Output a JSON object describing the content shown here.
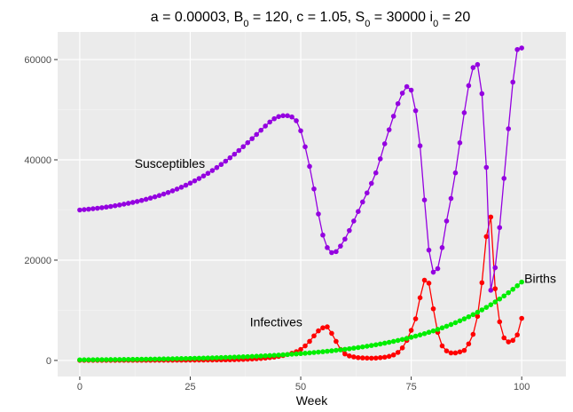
{
  "chart_data": {
    "type": "line",
    "title": {
      "a_text": "a = 0.00003, B",
      "b_sub": "0",
      "b_text": " = 120, c = 1.05, S",
      "s_sub": "0",
      "s_text": " = 30000 i",
      "i_sub": "0",
      "i_text": " = 20"
    },
    "xlabel": "Week",
    "ylabel": "",
    "xlim": [
      -5,
      110
    ],
    "ylim": [
      -3200,
      65500
    ],
    "x_ticks": [
      0,
      25,
      50,
      75,
      100
    ],
    "x_tick_labels": [
      "0",
      "25",
      "50",
      "75",
      "100"
    ],
    "y_ticks": [
      0,
      20000,
      40000,
      60000
    ],
    "y_tick_labels": [
      "0",
      "20000",
      "40000",
      "60000"
    ],
    "grid": true,
    "legend": "none",
    "x": [
      0,
      1,
      2,
      3,
      4,
      5,
      6,
      7,
      8,
      9,
      10,
      11,
      12,
      13,
      14,
      15,
      16,
      17,
      18,
      19,
      20,
      21,
      22,
      23,
      24,
      25,
      26,
      27,
      28,
      29,
      30,
      31,
      32,
      33,
      34,
      35,
      36,
      37,
      38,
      39,
      40,
      41,
      42,
      43,
      44,
      45,
      46,
      47,
      48,
      49,
      50,
      51,
      52,
      53,
      54,
      55,
      56,
      57,
      58,
      59,
      60,
      61,
      62,
      63,
      64,
      65,
      66,
      67,
      68,
      69,
      70,
      71,
      72,
      73,
      74,
      75,
      76,
      77,
      78,
      79,
      80,
      81,
      82,
      83,
      84,
      85,
      86,
      87,
      88,
      89,
      90,
      91,
      92,
      93,
      94,
      95,
      96,
      97,
      98,
      99,
      100
    ],
    "series": [
      {
        "name": "Susceptibles",
        "color": "#9400e0",
        "values": [
          30000,
          30075,
          30158,
          30250,
          30350,
          30460,
          30580,
          30710,
          30850,
          31000,
          31160,
          31330,
          31510,
          31700,
          31910,
          32130,
          32370,
          32620,
          32890,
          33180,
          33490,
          33820,
          34170,
          34540,
          34940,
          35360,
          35810,
          36280,
          36780,
          37310,
          37870,
          38460,
          39080,
          39730,
          40410,
          41120,
          41860,
          42630,
          43420,
          44230,
          45060,
          45900,
          46740,
          47540,
          48200,
          48620,
          48800,
          48800,
          48550,
          47800,
          45800,
          42600,
          38700,
          34200,
          29200,
          25000,
          22500,
          21500,
          21700,
          22800,
          24200,
          25900,
          27800,
          29700,
          31600,
          33400,
          35300,
          37400,
          40200,
          43200,
          46000,
          48700,
          51200,
          53300,
          54600,
          53900,
          49800,
          42800,
          32000,
          22000,
          17600,
          18300,
          22500,
          27800,
          32300,
          37400,
          43400,
          49400,
          54800,
          58400,
          59000,
          53200,
          38500,
          14000,
          18500,
          26500,
          36300,
          46200,
          55500,
          62000,
          62300
        ]
      },
      {
        "name": "Infectives",
        "color": "#ff0000",
        "values": [
          20,
          21,
          22,
          23,
          24,
          25,
          26,
          27,
          28,
          29,
          30,
          31,
          32,
          33,
          34,
          36,
          38,
          40,
          42,
          44,
          47,
          50,
          53,
          56,
          60,
          64,
          68,
          73,
          78,
          84,
          90,
          100,
          110,
          125,
          140,
          160,
          185,
          215,
          250,
          290,
          340,
          400,
          470,
          560,
          670,
          810,
          980,
          1180,
          1430,
          1750,
          2200,
          2900,
          3800,
          4900,
          5900,
          6500,
          6700,
          5400,
          3800,
          2200,
          1300,
          900,
          700,
          550,
          500,
          460,
          450,
          470,
          550,
          650,
          820,
          1100,
          1600,
          2500,
          4000,
          6000,
          8300,
          12500,
          16000,
          15400,
          10300,
          5600,
          2900,
          1900,
          1500,
          1500,
          1700,
          2000,
          3300,
          5200,
          8800,
          15500,
          24700,
          28600,
          14300,
          7700,
          4500,
          3700,
          4000,
          5100,
          8400
        ]
      },
      {
        "name": "Births",
        "color": "#00ee00",
        "values": [
          120,
          126,
          132,
          139,
          146,
          153,
          161,
          169,
          177,
          186,
          195,
          205,
          215,
          226,
          237,
          249,
          261,
          274,
          288,
          302,
          317,
          333,
          350,
          367,
          385,
          404,
          424,
          445,
          467,
          490,
          515,
          541,
          568,
          596,
          626,
          657,
          690,
          724,
          760,
          798,
          838,
          880,
          924,
          970,
          1018,
          1069,
          1122,
          1178,
          1237,
          1299,
          1364,
          1432,
          1504,
          1579,
          1658,
          1741,
          1828,
          1919,
          2015,
          2116,
          2222,
          2333,
          2450,
          2572,
          2700,
          2835,
          2977,
          3126,
          3282,
          3446,
          3618,
          3799,
          3989,
          4188,
          4398,
          4618,
          4849,
          5091,
          5345,
          5612,
          5893,
          6188,
          6497,
          6822,
          7163,
          7521,
          7897,
          8292,
          8707,
          9142,
          9599,
          10079,
          10583,
          11112,
          11668,
          12251,
          12864,
          13507,
          14182,
          14892,
          15636
        ]
      }
    ],
    "annotations": [
      {
        "text": "Susceptibles",
        "x": 12.4,
        "y": 39300
      },
      {
        "text": "Infectives",
        "x": 38.5,
        "y": 7700
      },
      {
        "text": "Births",
        "x": 100.6,
        "y": 16400
      }
    ]
  }
}
